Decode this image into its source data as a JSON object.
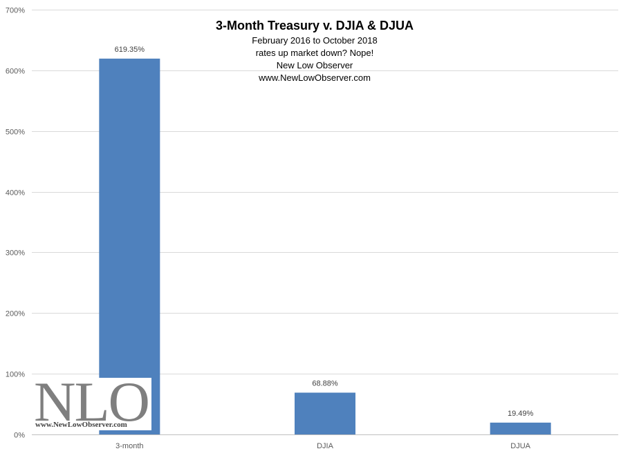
{
  "chart_data": {
    "type": "bar",
    "title": "3-Month Treasury v. DJIA & DJUA",
    "subtitle_lines": [
      "February 2016  to October 2018",
      "rates up market down? Nope!",
      "New Low Observer",
      "www.NewLowObserver.com"
    ],
    "categories": [
      "3-month",
      "DJIA",
      "DJUA"
    ],
    "values": [
      619.35,
      68.88,
      19.49
    ],
    "data_labels": [
      "619.35%",
      "68.88%",
      "19.49%"
    ],
    "ylim": [
      0,
      700
    ],
    "yticks": [
      0,
      100,
      200,
      300,
      400,
      500,
      600,
      700
    ],
    "ytick_labels": [
      "0%",
      "100%",
      "200%",
      "300%",
      "400%",
      "500%",
      "600%",
      "700%"
    ],
    "xlabel": "",
    "ylabel": "",
    "grid": true,
    "bar_color": "#4f81bd"
  },
  "logo": {
    "text": "NLO",
    "url": "www.NewLowObserver.com"
  }
}
